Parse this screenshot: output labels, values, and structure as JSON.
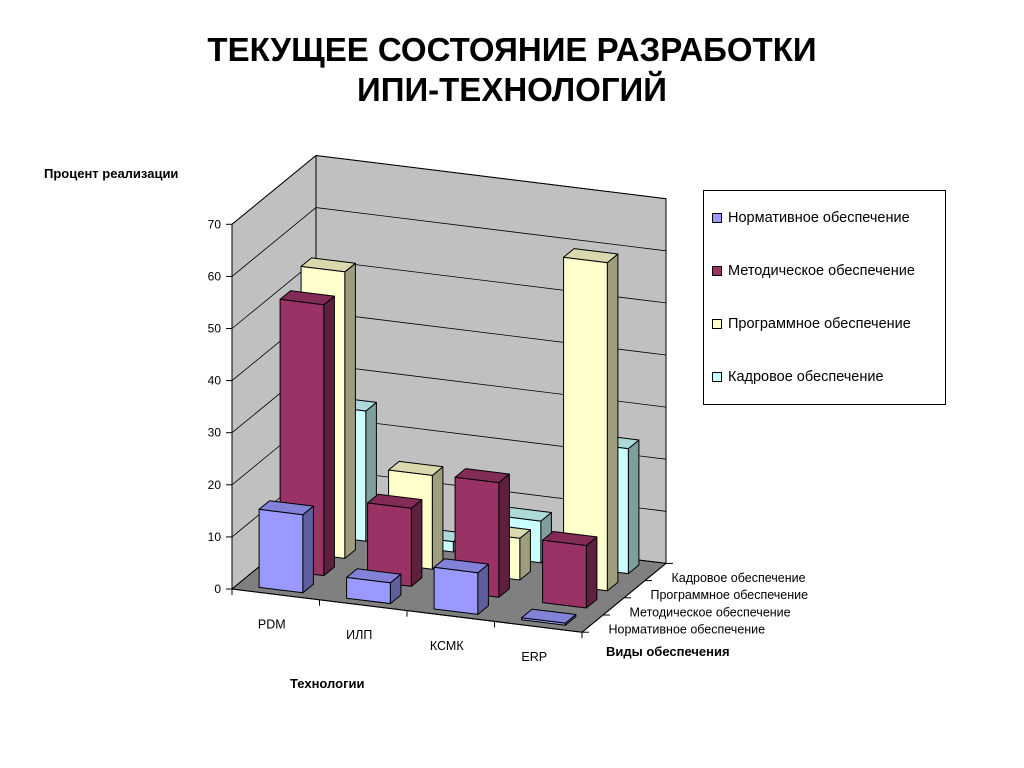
{
  "title": {
    "line1": "ТЕКУЩЕЕ СОСТОЯНИЕ РАЗРАБОТКИ",
    "line2": "ИПИ-ТЕХНОЛОГИЙ"
  },
  "chart_data": {
    "type": "bar",
    "subtype": "3d-column",
    "zlabel": "Процент  реализации",
    "xlabel": "Технологии",
    "ylabel": "Виды обеспечения",
    "zlim": [
      0,
      70
    ],
    "z_ticks": [
      "0",
      "10",
      "20",
      "30",
      "40",
      "50",
      "60",
      "70"
    ],
    "categories": [
      "PDM",
      "ИЛП",
      "КСМК",
      "ERP"
    ],
    "series": [
      {
        "name": "Нормативное обеспечение",
        "color": "#9999ff",
        "values": [
          15,
          4,
          8,
          0
        ]
      },
      {
        "name": "Методическое обеспечение",
        "color": "#993366",
        "values": [
          52,
          15,
          22,
          12
        ]
      },
      {
        "name": "Программное обеспечение",
        "color": "#ffffcc",
        "values": [
          55,
          18,
          8,
          63
        ]
      },
      {
        "name": "Кадровое обеспечение",
        "color": "#ccffff",
        "values": [
          25,
          2,
          8,
          24
        ]
      }
    ],
    "depth_labels": [
      "Нормативное обеспечение",
      "Методическое обеспечение",
      "Программное обеспечение",
      "Кадровое обеспечение"
    ],
    "grid": true,
    "legend_position": "right"
  }
}
